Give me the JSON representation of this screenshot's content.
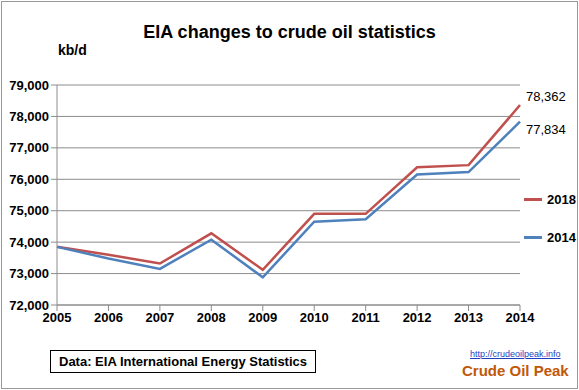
{
  "chart_data": {
    "type": "line",
    "title": "EIA changes to crude oil statistics",
    "y_label": "kb/d",
    "categories": [
      "2005",
      "2006",
      "2007",
      "2008",
      "2009",
      "2010",
      "2011",
      "2012",
      "2013",
      "2014"
    ],
    "series": [
      {
        "name": "2018",
        "color": "#c0504d",
        "values": [
          73850,
          73600,
          73320,
          74280,
          73120,
          74900,
          74900,
          76380,
          76450,
          78362
        ],
        "value_labels": [
          null,
          null,
          null,
          null,
          null,
          null,
          null,
          null,
          null,
          "78,362"
        ]
      },
      {
        "name": "2014",
        "color": "#4f81bd",
        "values": [
          73850,
          73480,
          73150,
          74080,
          72880,
          74650,
          74730,
          76150,
          76230,
          77834
        ],
        "value_labels": [
          null,
          null,
          null,
          null,
          null,
          null,
          null,
          null,
          null,
          "77,834"
        ]
      }
    ],
    "ylim": [
      72000,
      79000
    ],
    "yticks": [
      {
        "value": 72000,
        "label": "72,000"
      },
      {
        "value": 73000,
        "label": "73,000"
      },
      {
        "value": 74000,
        "label": "74,000"
      },
      {
        "value": 75000,
        "label": "75,000"
      },
      {
        "value": 76000,
        "label": "76,000"
      },
      {
        "value": 77000,
        "label": "77,000"
      },
      {
        "value": 78000,
        "label": "78,000"
      },
      {
        "value": 79000,
        "label": "79,000"
      }
    ],
    "grid": true,
    "legend": "right",
    "annotations": [
      "Data: EIA International Energy Statistics",
      "http://crudeoilpeak.info",
      "Crude Oil Peak"
    ]
  }
}
